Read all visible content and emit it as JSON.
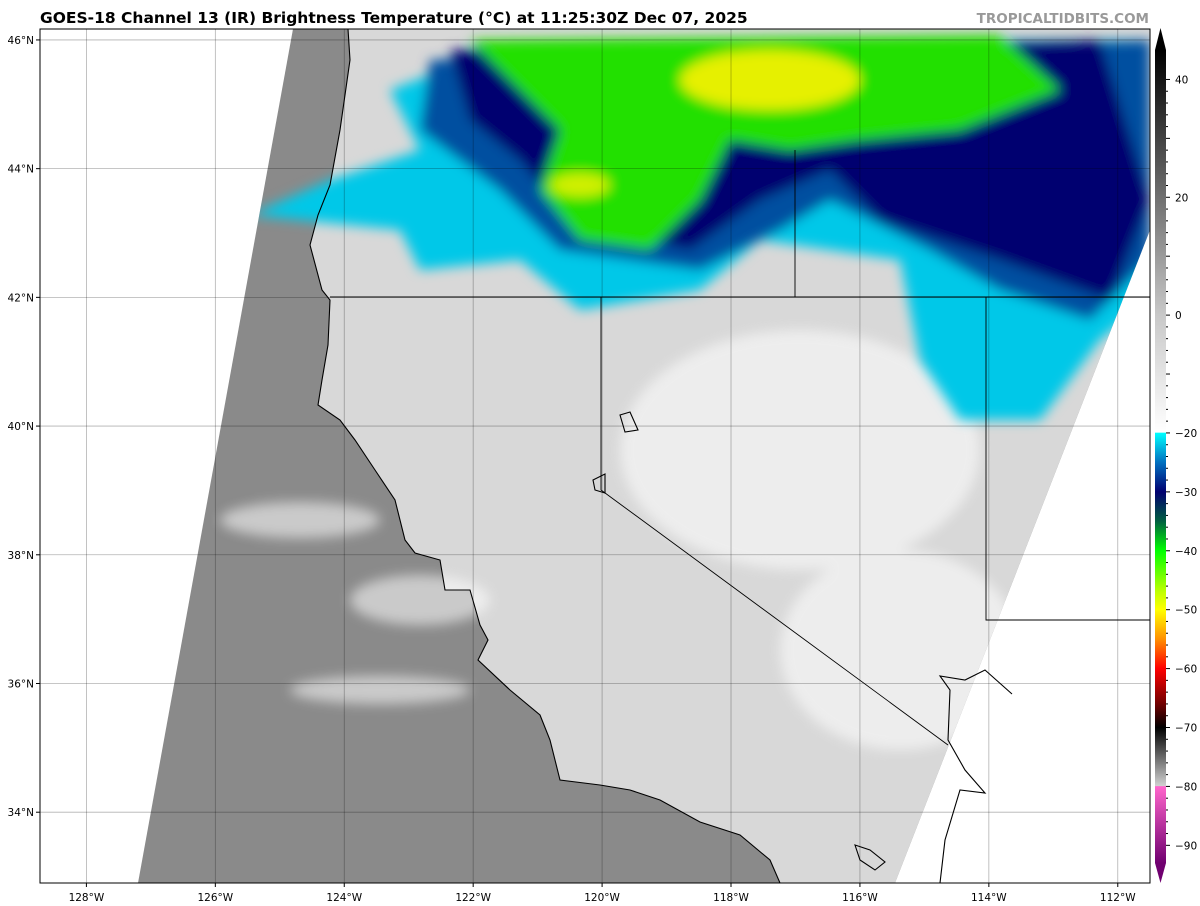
{
  "title": "GOES-18 Channel 13 (IR) Brightness Temperature (°C) at 11:25:30Z Dec 07, 2025",
  "watermark": "TROPICALTIDBITS.COM",
  "map": {
    "lon_range": [
      -128.72,
      -111.5
    ],
    "lat_range": [
      32.9,
      46.17
    ],
    "longitude_labels": [
      {
        "v": -128,
        "t": "128°W"
      },
      {
        "v": -126,
        "t": "126°W"
      },
      {
        "v": -124,
        "t": "124°W"
      },
      {
        "v": -122,
        "t": "122°W"
      },
      {
        "v": -120,
        "t": "120°W"
      },
      {
        "v": -118,
        "t": "118°W"
      },
      {
        "v": -116,
        "t": "116°W"
      },
      {
        "v": -114,
        "t": "114°W"
      },
      {
        "v": -112,
        "t": "112°W"
      }
    ],
    "latitude_labels": [
      {
        "v": 46,
        "t": "46°N"
      },
      {
        "v": 44,
        "t": "44°N"
      },
      {
        "v": 42,
        "t": "42°N"
      },
      {
        "v": 40,
        "t": "40°N"
      },
      {
        "v": 38,
        "t": "38°N"
      },
      {
        "v": 36,
        "t": "36°N"
      },
      {
        "v": 34,
        "t": "34°N"
      }
    ],
    "grid": true
  },
  "colorbar": {
    "range": [
      -93,
      45
    ],
    "ticks": [
      {
        "v": 40,
        "t": "40"
      },
      {
        "v": 20,
        "t": "20"
      },
      {
        "v": 0,
        "t": "0"
      },
      {
        "v": -20,
        "t": "−20"
      },
      {
        "v": -30,
        "t": "−30"
      },
      {
        "v": -40,
        "t": "−40"
      },
      {
        "v": -50,
        "t": "−50"
      },
      {
        "v": -60,
        "t": "−60"
      },
      {
        "v": -70,
        "t": "−70"
      },
      {
        "v": -80,
        "t": "−80"
      },
      {
        "v": -90,
        "t": "−90"
      }
    ],
    "stops": [
      [
        45,
        "#000000"
      ],
      [
        0,
        "#c8c8c8"
      ],
      [
        -19.9,
        "#ffffff"
      ],
      [
        -20,
        "#00ffff"
      ],
      [
        -25,
        "#0070c0"
      ],
      [
        -30,
        "#000070"
      ],
      [
        -35,
        "#006040"
      ],
      [
        -40,
        "#00ff00"
      ],
      [
        -47,
        "#c0ff00"
      ],
      [
        -50,
        "#ffff00"
      ],
      [
        -55,
        "#ff9000"
      ],
      [
        -60,
        "#ff0000"
      ],
      [
        -66,
        "#700000"
      ],
      [
        -70,
        "#000000"
      ],
      [
        -79.9,
        "#d0d0d0"
      ],
      [
        -80,
        "#ff66cc"
      ],
      [
        -93,
        "#700070"
      ]
    ]
  }
}
